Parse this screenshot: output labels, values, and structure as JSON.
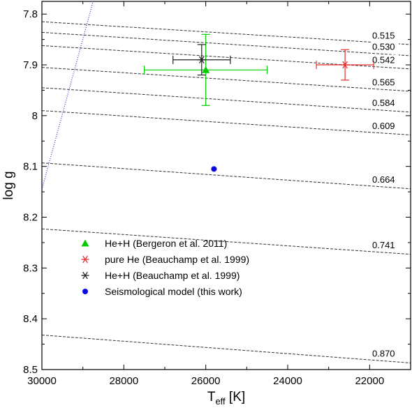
{
  "chart_data": {
    "type": "scatter",
    "xlabel": {
      "main": "T",
      "sub": "eff",
      "unit": " [K]"
    },
    "ylabel": "log g",
    "xlim": [
      30000,
      21000
    ],
    "ylim": [
      7.775,
      8.5
    ],
    "x_reversed": true,
    "y_inverted": true,
    "xticks": [
      30000,
      28000,
      26000,
      24000,
      22000
    ],
    "xtick_labels": [
      "30000",
      "28000",
      "26000",
      "24000",
      "22000"
    ],
    "xtick_minor_step": 1000,
    "yticks": [
      7.8,
      7.9,
      8.0,
      8.1,
      8.2,
      8.3,
      8.4,
      8.5
    ],
    "ytick_labels": [
      "7.8",
      "7.9",
      "8",
      "8.1",
      "8.2",
      "8.3",
      "8.4",
      "8.5"
    ],
    "ytick_minor_step": 0.05,
    "grid": false,
    "legend_position": "bottom-left",
    "mass_tracks": [
      {
        "label": "0.515",
        "start": [
          30000,
          7.815
        ],
        "end": [
          21000,
          7.86
        ]
      },
      {
        "label": "0.530",
        "start": [
          30000,
          7.836
        ],
        "end": [
          21000,
          7.882
        ]
      },
      {
        "label": "0.542",
        "start": [
          30000,
          7.862
        ],
        "end": [
          21000,
          7.908
        ]
      },
      {
        "label": "0.565",
        "start": [
          30000,
          7.905
        ],
        "end": [
          21000,
          7.952
        ]
      },
      {
        "label": "0.584",
        "start": [
          30000,
          7.945
        ],
        "end": [
          21000,
          7.993
        ]
      },
      {
        "label": "0.609",
        "start": [
          30000,
          7.99
        ],
        "end": [
          21000,
          8.038
        ]
      },
      {
        "label": "0.664",
        "start": [
          30000,
          8.093
        ],
        "end": [
          21000,
          8.144
        ]
      },
      {
        "label": "0.741",
        "start": [
          30000,
          8.223
        ],
        "end": [
          21000,
          8.273
        ]
      },
      {
        "label": "0.870",
        "start": [
          30000,
          8.432
        ],
        "end": [
          21000,
          8.487
        ]
      }
    ],
    "blue_edge": {
      "start": [
        30000,
        8.145
      ],
      "end": [
        28750,
        7.775
      ],
      "color": "#3333cc"
    },
    "series": [
      {
        "name": "He+H (Bergeron et al. 2011)",
        "marker": "triangle",
        "color": "#00cc00",
        "x": 26000,
        "y": 7.91,
        "xerr": [
          1500,
          1500
        ],
        "yerr": [
          0.07,
          0.07
        ]
      },
      {
        "name": "pure He (Beauchamp et al. 1999)",
        "marker": "asterisk",
        "color": "#e83030",
        "x": 22600,
        "y": 7.9,
        "xerr": [
          700,
          700
        ],
        "yerr": [
          0.03,
          0.03
        ]
      },
      {
        "name": "He+H (Beauchamp et al. 1999)",
        "marker": "asterisk",
        "color": "#202020",
        "x": 26100,
        "y": 7.89,
        "xerr": [
          700,
          700
        ],
        "yerr": [
          0.03,
          0.03
        ]
      },
      {
        "name": "Seismological model (this work)",
        "marker": "circle",
        "color": "#0a0ae0",
        "x": 25800,
        "y": 8.105,
        "xerr": null,
        "yerr": null
      }
    ]
  }
}
